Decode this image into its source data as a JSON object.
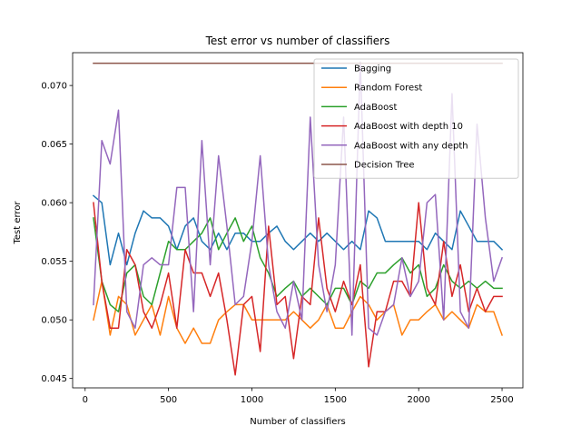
{
  "chart_data": {
    "type": "line",
    "title": "Test error vs number of classifiers",
    "xlabel": "Number of classifiers",
    "ylabel": "Test error",
    "xlim": [
      -75,
      2625
    ],
    "ylim": [
      0.0442,
      0.0728
    ],
    "xticks": [
      0,
      500,
      1000,
      1500,
      2000,
      2500
    ],
    "yticks": [
      0.045,
      0.05,
      0.055,
      0.06,
      0.065,
      0.07
    ],
    "ytick_labels": [
      "0.045",
      "0.050",
      "0.055",
      "0.060",
      "0.065",
      "0.070"
    ],
    "grid": false,
    "legend_position": "upper right",
    "x": [
      50,
      100,
      150,
      200,
      250,
      300,
      350,
      400,
      450,
      500,
      550,
      600,
      650,
      700,
      750,
      800,
      850,
      900,
      950,
      1000,
      1050,
      1100,
      1150,
      1200,
      1250,
      1300,
      1350,
      1400,
      1450,
      1500,
      1550,
      1600,
      1650,
      1700,
      1750,
      1800,
      1850,
      1900,
      1950,
      2000,
      2050,
      2100,
      2150,
      2200,
      2250,
      2300,
      2350,
      2400,
      2450,
      2500
    ],
    "series": [
      {
        "name": "Bagging",
        "color": "#1f77b4",
        "values": [
          0.0606,
          0.06,
          0.0547,
          0.0574,
          0.0547,
          0.0574,
          0.0593,
          0.0587,
          0.0587,
          0.058,
          0.056,
          0.058,
          0.0587,
          0.0567,
          0.056,
          0.0574,
          0.056,
          0.0574,
          0.0574,
          0.0567,
          0.0567,
          0.0574,
          0.058,
          0.0567,
          0.056,
          0.0567,
          0.0574,
          0.0567,
          0.0574,
          0.0567,
          0.056,
          0.0567,
          0.056,
          0.0593,
          0.0587,
          0.0567,
          0.0567,
          0.0567,
          0.0567,
          0.0567,
          0.056,
          0.0574,
          0.0567,
          0.056,
          0.0593,
          0.058,
          0.0567,
          0.0567,
          0.0567,
          0.056
        ]
      },
      {
        "name": "Random Forest",
        "color": "#ff7f0e",
        "values": [
          0.05,
          0.0533,
          0.0487,
          0.052,
          0.0513,
          0.0487,
          0.05,
          0.0513,
          0.0487,
          0.052,
          0.0493,
          0.048,
          0.0493,
          0.048,
          0.048,
          0.05,
          0.0507,
          0.0513,
          0.0513,
          0.05,
          0.05,
          0.05,
          0.05,
          0.05,
          0.0507,
          0.05,
          0.0493,
          0.05,
          0.0513,
          0.0493,
          0.0493,
          0.0507,
          0.052,
          0.0513,
          0.05,
          0.0507,
          0.0513,
          0.0487,
          0.05,
          0.05,
          0.0507,
          0.0513,
          0.05,
          0.0507,
          0.05,
          0.0493,
          0.0513,
          0.0507,
          0.0507,
          0.0487
        ]
      },
      {
        "name": "AdaBoost",
        "color": "#2ca02c",
        "values": [
          0.0587,
          0.0533,
          0.0513,
          0.0507,
          0.054,
          0.0547,
          0.052,
          0.0513,
          0.054,
          0.0567,
          0.056,
          0.056,
          0.0567,
          0.0574,
          0.0587,
          0.056,
          0.0574,
          0.0587,
          0.0567,
          0.058,
          0.0553,
          0.054,
          0.052,
          0.0527,
          0.0533,
          0.052,
          0.0527,
          0.052,
          0.0513,
          0.0527,
          0.0527,
          0.0513,
          0.0533,
          0.0527,
          0.054,
          0.054,
          0.0547,
          0.0553,
          0.054,
          0.0547,
          0.052,
          0.0527,
          0.0547,
          0.0533,
          0.0527,
          0.0533,
          0.0527,
          0.0533,
          0.0527,
          0.0527
        ]
      },
      {
        "name": "AdaBoost with depth 10",
        "color": "#d62728",
        "values": [
          0.06,
          0.0533,
          0.0493,
          0.0493,
          0.056,
          0.0547,
          0.0507,
          0.0493,
          0.0513,
          0.054,
          0.0493,
          0.056,
          0.054,
          0.054,
          0.052,
          0.054,
          0.05,
          0.0453,
          0.0513,
          0.052,
          0.0473,
          0.058,
          0.0513,
          0.052,
          0.0467,
          0.052,
          0.0513,
          0.0587,
          0.0527,
          0.0507,
          0.0533,
          0.0513,
          0.0547,
          0.046,
          0.0507,
          0.0507,
          0.0533,
          0.0533,
          0.052,
          0.06,
          0.0527,
          0.0513,
          0.0567,
          0.052,
          0.0547,
          0.0507,
          0.0527,
          0.0507,
          0.052,
          0.052
        ]
      },
      {
        "name": "AdaBoost with any depth",
        "color": "#9467bd",
        "values": [
          0.0513,
          0.0653,
          0.0633,
          0.0679,
          0.0507,
          0.0493,
          0.0547,
          0.0553,
          0.0547,
          0.0547,
          0.0613,
          0.0613,
          0.0507,
          0.0653,
          0.0547,
          0.064,
          0.058,
          0.0513,
          0.052,
          0.0567,
          0.064,
          0.0547,
          0.0507,
          0.0493,
          0.0533,
          0.05,
          0.0673,
          0.0547,
          0.0507,
          0.0547,
          0.0673,
          0.0487,
          0.072,
          0.0493,
          0.0487,
          0.0507,
          0.0513,
          0.0553,
          0.052,
          0.0533,
          0.06,
          0.0607,
          0.05,
          0.0693,
          0.0507,
          0.0493,
          0.0667,
          0.0587,
          0.0533,
          0.0553
        ]
      },
      {
        "name": "Decision Tree",
        "color": "#8c564b",
        "values": [
          0.0719,
          0.0719,
          0.0719,
          0.0719,
          0.0719,
          0.0719,
          0.0719,
          0.0719,
          0.0719,
          0.0719,
          0.0719,
          0.0719,
          0.0719,
          0.0719,
          0.0719,
          0.0719,
          0.0719,
          0.0719,
          0.0719,
          0.0719,
          0.0719,
          0.0719,
          0.0719,
          0.0719,
          0.0719,
          0.0719,
          0.0719,
          0.0719,
          0.0719,
          0.0719,
          0.0719,
          0.0719,
          0.0719,
          0.0719,
          0.0719,
          0.0719,
          0.0719,
          0.0719,
          0.0719,
          0.0719,
          0.0719,
          0.0719,
          0.0719,
          0.0719,
          0.0719,
          0.0719,
          0.0719,
          0.0719,
          0.0719,
          0.0719
        ]
      }
    ]
  }
}
